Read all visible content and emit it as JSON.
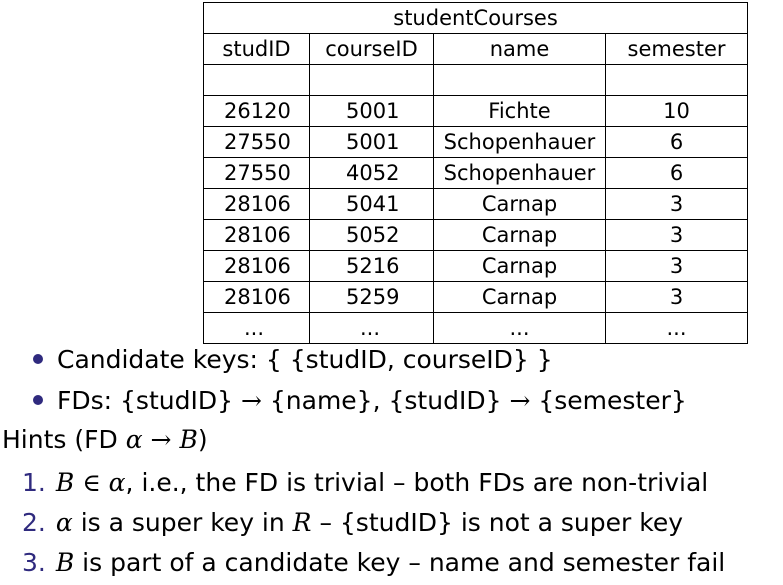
{
  "table": {
    "title": "studentCourses",
    "headers": [
      "studID",
      "courseID",
      "name",
      "semester"
    ],
    "rows": [
      [
        "26120",
        "5001",
        "Fichte",
        "10"
      ],
      [
        "27550",
        "5001",
        "Schopenhauer",
        "6"
      ],
      [
        "27550",
        "4052",
        "Schopenhauer",
        "6"
      ],
      [
        "28106",
        "5041",
        "Carnap",
        "3"
      ],
      [
        "28106",
        "5052",
        "Carnap",
        "3"
      ],
      [
        "28106",
        "5216",
        "Carnap",
        "3"
      ],
      [
        "28106",
        "5259",
        "Carnap",
        "3"
      ]
    ],
    "ellipsis": [
      "...",
      "...",
      "...",
      "..."
    ]
  },
  "bullets": {
    "candidate_keys": {
      "label": "Candidate keys:",
      "value": "{ {studID, courseID} }"
    },
    "fds": {
      "label": "FDs:",
      "fd1_lhs": "{studID}",
      "fd1_rhs": "{name},",
      "fd2_lhs": "{studID}",
      "fd2_rhs": "{semester}",
      "arrow": "→"
    }
  },
  "hints": {
    "prefix": "Hints (FD ",
    "alpha": "α",
    "arrow": "→",
    "B": "B",
    "suffix": ")",
    "items": [
      {
        "num": "1.",
        "math_B": "B",
        "in": "∈",
        "math_alpha": "α",
        "text": ", i.e., the FD is trivial – both FDs are non-trivial"
      },
      {
        "num": "2.",
        "math_alpha": "α",
        "text_a": " is a super key in ",
        "math_R": "R",
        "text_b": " – {studID} is not a super key"
      },
      {
        "num": "3.",
        "math_B": "B",
        "text": " is part of a candidate key – name and semester fail"
      }
    ]
  },
  "colors": {
    "accent": "#2f2a7e",
    "text": "#000000"
  }
}
